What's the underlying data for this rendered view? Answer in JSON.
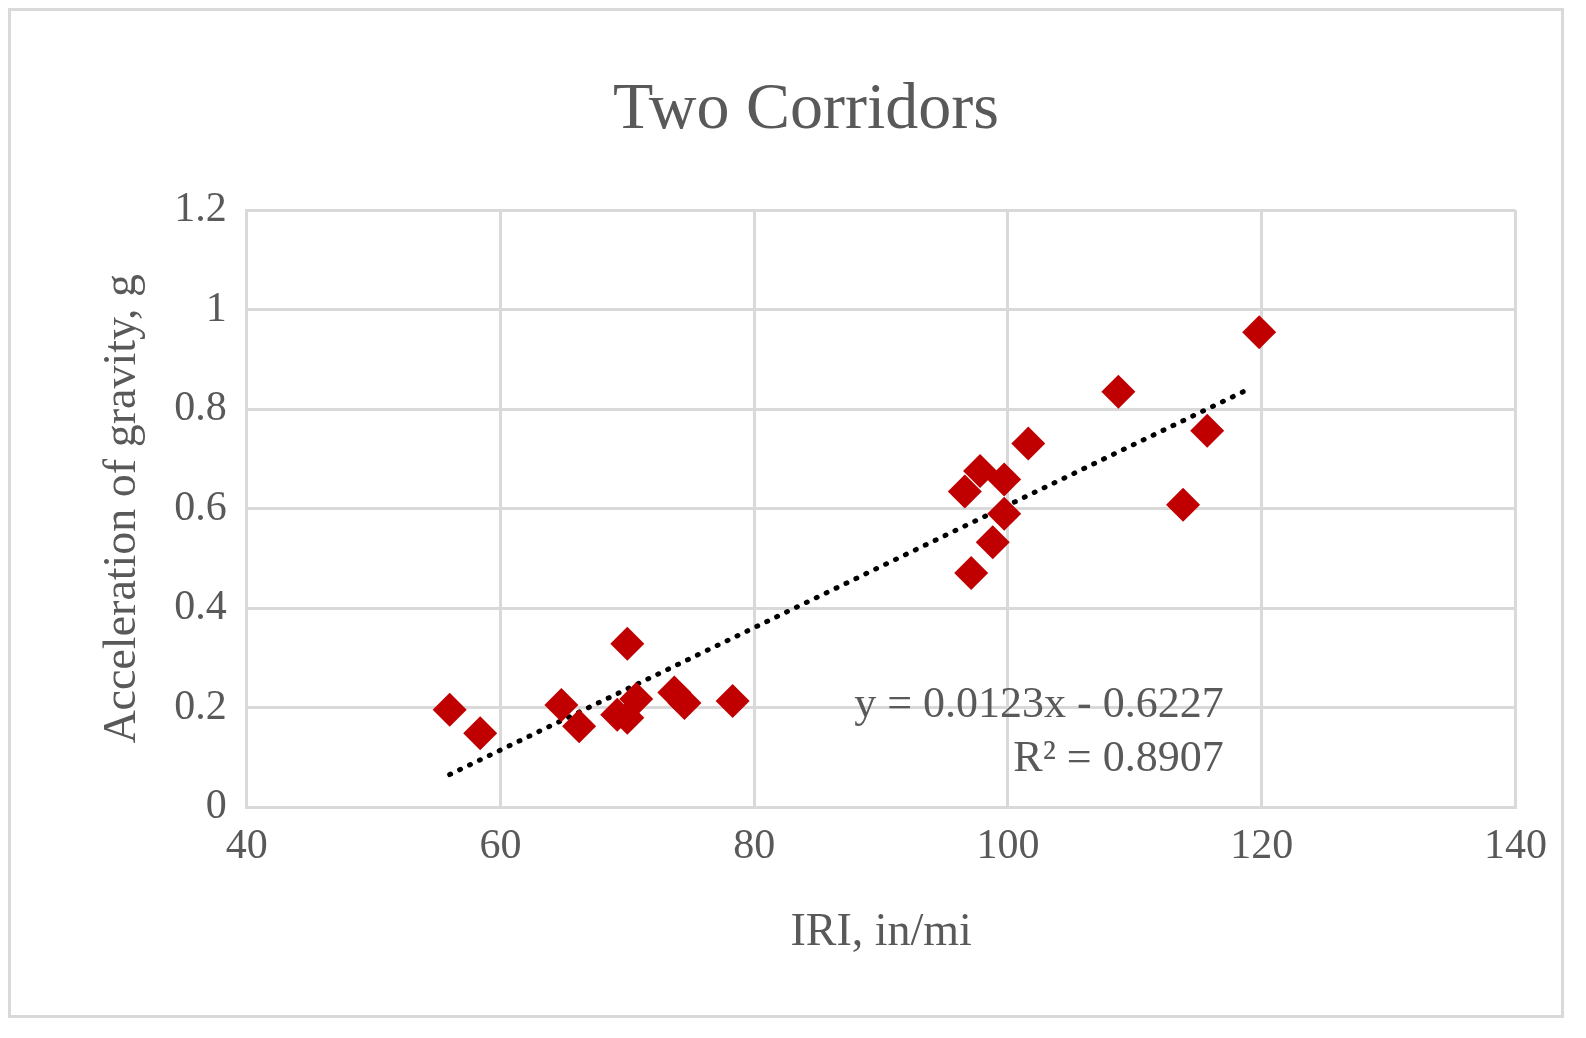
{
  "chart_data": {
    "type": "scatter",
    "title": "Two Corridors",
    "xlabel": "IRI, in/mi",
    "ylabel": "Acceleration of gravity, g",
    "xlim": [
      40,
      140
    ],
    "xticks": [
      40,
      60,
      80,
      100,
      120,
      140
    ],
    "ylim": [
      0,
      1.2
    ],
    "yticks": [
      0,
      0.2,
      0.4,
      0.6,
      0.8,
      1,
      1.2
    ],
    "grid": true,
    "legend": false,
    "marker": "diamond",
    "series": [
      {
        "color": "#c00000",
        "x": [
          56.0,
          58.4,
          64.8,
          66.2,
          69.2,
          70.0,
          70.0,
          70.7,
          73.7,
          74.5,
          78.3,
          96.6,
          97.1,
          97.8,
          98.8,
          99.7,
          99.7,
          101.6,
          108.7,
          113.8,
          115.7,
          119.8
        ],
        "values": [
          0.196,
          0.149,
          0.206,
          0.163,
          0.186,
          0.329,
          0.18,
          0.218,
          0.231,
          0.21,
          0.214,
          0.635,
          0.471,
          0.676,
          0.533,
          0.659,
          0.59,
          0.731,
          0.835,
          0.608,
          0.757,
          0.955
        ]
      },
      {
        "type": "line",
        "color": "#000000",
        "line_style": "dotted",
        "marker": "none",
        "x": [
          56,
          119
        ],
        "values": [
          0.066,
          0.841
        ]
      }
    ],
    "annotations": [
      "y = 0.0123x - 0.6227",
      "R² = 0.8907"
    ]
  }
}
